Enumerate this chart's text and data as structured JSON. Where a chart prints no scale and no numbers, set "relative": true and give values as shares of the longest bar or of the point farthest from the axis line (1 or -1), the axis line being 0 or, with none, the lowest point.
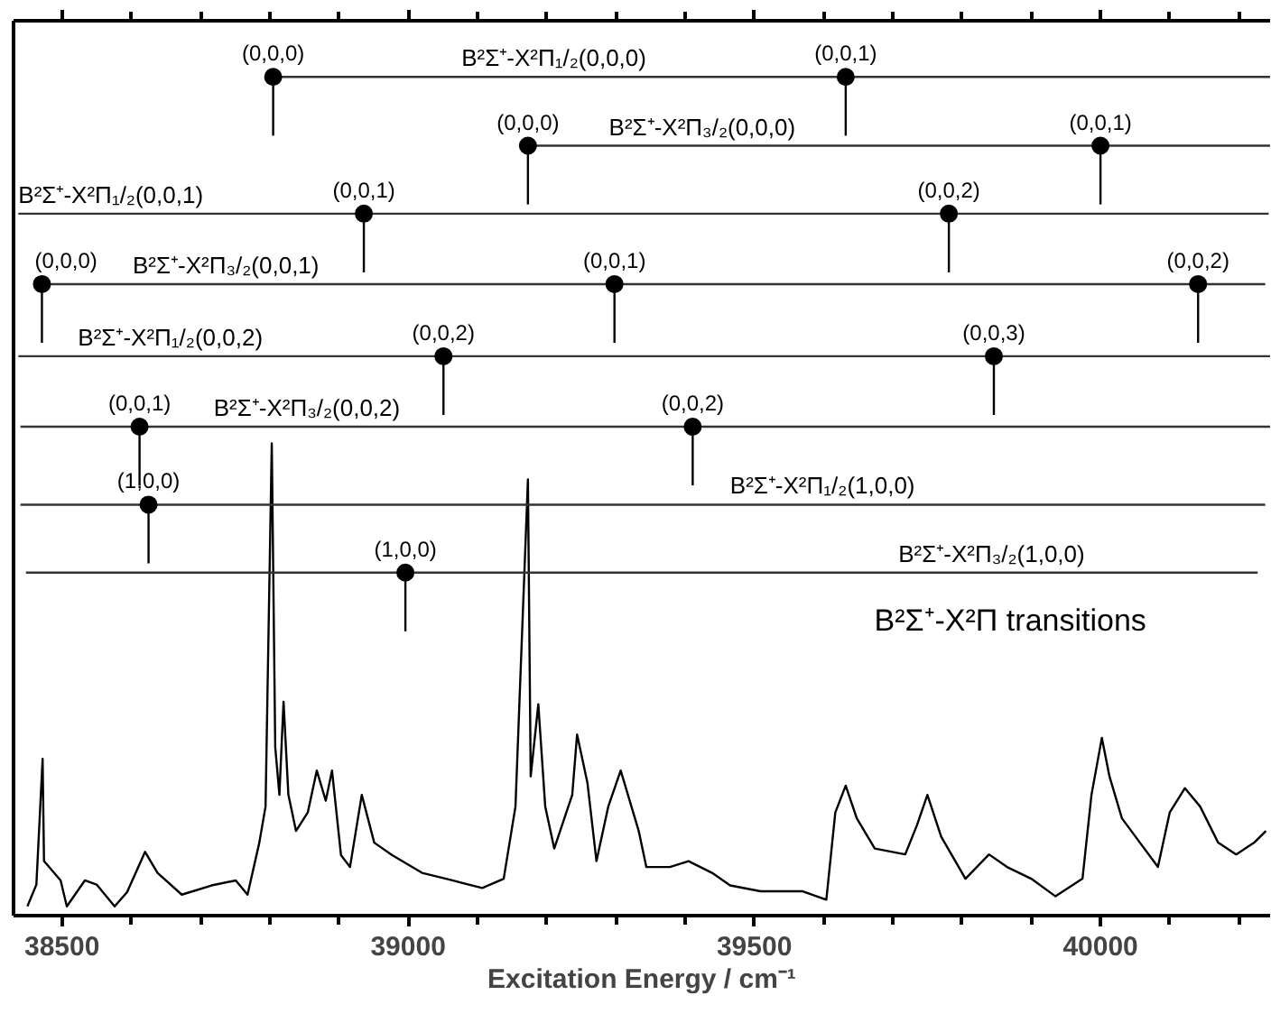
{
  "chart_data": {
    "type": "line",
    "relative": true,
    "xlabel": "Excitation Energy / cm⁻¹",
    "xlim": [
      38430,
      40245
    ],
    "xticks": [
      38500,
      {
        "value": 38600,
        "label": null
      },
      {
        "value": 38700,
        "label": null
      },
      {
        "value": 38800,
        "label": null
      },
      {
        "value": 38900,
        "label": null
      },
      39000,
      {
        "value": 39100,
        "label": null
      },
      {
        "value": 39200,
        "label": null
      },
      {
        "value": 39300,
        "label": null
      },
      {
        "value": 39400,
        "label": null
      },
      39500,
      {
        "value": 39600,
        "label": null
      },
      {
        "value": 39700,
        "label": null
      },
      {
        "value": 39800,
        "label": null
      },
      {
        "value": 39900,
        "label": null
      },
      40000,
      {
        "value": 40100,
        "label": null
      },
      {
        "value": 40200,
        "label": null
      }
    ],
    "annotations": [
      {
        "text": "B²Σ⁺-X²Π₁/₂(0,0,0)",
        "x": 39077,
        "y": 1.0
      },
      {
        "text": "B²Σ⁺-X²Π₃/₂(0,0,0)",
        "x": 39290,
        "y": 0.918
      },
      {
        "text": "B²Σ⁺-X²Π₁/₂(0,0,1)",
        "x": 38437,
        "y": 0.837
      },
      {
        "text": "B²Σ⁺-X²Π₃/₂(0,0,1)",
        "x": 38602,
        "y": 0.753
      },
      {
        "text": "B²Σ⁺-X²Π₁/₂(0,0,2)",
        "x": 38523,
        "y": 0.667
      },
      {
        "text": "B²Σ⁺-X²Π₃/₂(0,0,2)",
        "x": 38719,
        "y": 0.583
      },
      {
        "text": "B²Σ⁺-X²Π₁/₂(1,0,0)",
        "x": 39465,
        "y": 0.49
      },
      {
        "text": "B²Σ⁺-X²Π₃/₂(1,0,0)",
        "x": 39708,
        "y": 0.409
      },
      {
        "text": "(0,0,0)",
        "x": 38805,
        "y": 1.0
      },
      {
        "text": "(0,0,1)",
        "x": 39632,
        "y": 1.0
      },
      {
        "text": "(0,0,0)",
        "x": 39173,
        "y": 0.918
      },
      {
        "text": "(0,0,1)",
        "x": 40000,
        "y": 0.918
      },
      {
        "text": "(0,0,1)",
        "x": 38936,
        "y": 0.837
      },
      {
        "text": "(0,0,2)",
        "x": 39781,
        "y": 0.837
      },
      {
        "text": "(0,0,0)",
        "x": 38471,
        "y": 0.753
      },
      {
        "text": "(0,0,1)",
        "x": 39298,
        "y": 0.753
      },
      {
        "text": "(0,0,2)",
        "x": 40141,
        "y": 0.753
      },
      {
        "text": "(0,0,2)",
        "x": 39051,
        "y": 0.667
      },
      {
        "text": "(0,0,3)",
        "x": 39846,
        "y": 0.667
      },
      {
        "text": "(0,0,1)",
        "x": 38612,
        "y": 0.583
      },
      {
        "text": "(0,0,2)",
        "x": 39411,
        "y": 0.583
      },
      {
        "text": "(1,0,0)",
        "x": 38625,
        "y": 0.49
      },
      {
        "text": "(1,0,0)",
        "x": 38996,
        "y": 0.409
      },
      "B²Σ⁺-X²Π transitions"
    ],
    "series": [
      {
        "color": "#000000",
        "x": [
          38450,
          38463,
          38472,
          38474,
          38498,
          38507,
          38533,
          38550,
          38576,
          38594,
          38620,
          38638,
          38673,
          38716,
          38751,
          38768,
          38785,
          38794,
          38803,
          38808,
          38814,
          38820,
          38827,
          38838,
          38855,
          38868,
          38881,
          38890,
          38903,
          38916,
          38933,
          38951,
          38977,
          39020,
          39064,
          39107,
          39138,
          39155,
          39173,
          39177,
          39188,
          39198,
          39211,
          39237,
          39244,
          39259,
          39272,
          39289,
          39307,
          39333,
          39344,
          39378,
          39405,
          39439,
          39465,
          39509,
          39570,
          39604,
          39617,
          39632,
          39648,
          39674,
          39718,
          39735,
          39750,
          39770,
          39805,
          39839,
          39865,
          39900,
          39935,
          39974,
          39987,
          40002,
          40013,
          40031,
          40057,
          40083,
          40100,
          40122,
          40144,
          40170,
          40196,
          40222,
          40239
        ],
        "values": [
          0.011,
          0.037,
          0.187,
          0.065,
          0.042,
          0.011,
          0.042,
          0.037,
          0.011,
          0.028,
          0.076,
          0.051,
          0.025,
          0.036,
          0.042,
          0.025,
          0.087,
          0.13,
          0.563,
          0.201,
          0.144,
          0.255,
          0.144,
          0.101,
          0.123,
          0.173,
          0.137,
          0.173,
          0.072,
          0.058,
          0.144,
          0.087,
          0.072,
          0.051,
          0.042,
          0.033,
          0.044,
          0.13,
          0.52,
          0.166,
          0.252,
          0.13,
          0.08,
          0.144,
          0.216,
          0.158,
          0.065,
          0.13,
          0.173,
          0.101,
          0.058,
          0.058,
          0.065,
          0.051,
          0.036,
          0.029,
          0.029,
          0.019,
          0.123,
          0.155,
          0.116,
          0.08,
          0.073,
          0.108,
          0.144,
          0.094,
          0.044,
          0.073,
          0.058,
          0.044,
          0.023,
          0.044,
          0.144,
          0.212,
          0.166,
          0.116,
          0.087,
          0.058,
          0.123,
          0.152,
          0.13,
          0.087,
          0.073,
          0.087,
          0.101
        ]
      },
      {
        "type": "line",
        "color": "#333333",
        "x": [
          38805,
          40245
        ],
        "values": [
          1.0,
          1.0
        ]
      },
      {
        "type": "line",
        "color": "#000000",
        "x": [
          38805,
          38805
        ],
        "values": [
          0.93,
          1.0
        ]
      },
      {
        "type": "line",
        "color": "#000000",
        "x": [
          39632,
          39632
        ],
        "values": [
          0.93,
          1.0
        ]
      },
      {
        "type": "scatter",
        "color": "#000000",
        "x": [
          38805,
          39632
        ],
        "values": [
          1.0,
          1.0
        ]
      },
      {
        "type": "line",
        "color": "#333333",
        "x": [
          39173,
          40245
        ],
        "values": [
          0.918,
          0.918
        ]
      },
      {
        "type": "line",
        "color": "#000000",
        "x": [
          39173,
          39173
        ],
        "values": [
          0.848,
          0.918
        ]
      },
      {
        "type": "line",
        "color": "#000000",
        "x": [
          40000,
          40000
        ],
        "values": [
          0.848,
          0.918
        ]
      },
      {
        "type": "scatter",
        "color": "#000000",
        "x": [
          39173,
          40000
        ],
        "values": [
          0.918,
          0.918
        ]
      },
      {
        "type": "line",
        "color": "#333333",
        "x": [
          38437,
          40243
        ],
        "values": [
          0.837,
          0.837
        ]
      },
      {
        "type": "line",
        "color": "#000000",
        "x": [
          38936,
          38936
        ],
        "values": [
          0.767,
          0.837
        ]
      },
      {
        "type": "line",
        "color": "#000000",
        "x": [
          39781,
          39781
        ],
        "values": [
          0.767,
          0.837
        ]
      },
      {
        "type": "scatter",
        "color": "#000000",
        "x": [
          38936,
          39781
        ],
        "values": [
          0.837,
          0.837
        ]
      },
      {
        "type": "line",
        "color": "#333333",
        "x": [
          38463,
          40238
        ],
        "values": [
          0.753,
          0.753
        ]
      },
      {
        "type": "line",
        "color": "#000000",
        "x": [
          38471,
          38471
        ],
        "values": [
          0.683,
          0.753
        ]
      },
      {
        "type": "line",
        "color": "#000000",
        "x": [
          39298,
          39298
        ],
        "values": [
          0.683,
          0.753
        ]
      },
      {
        "type": "line",
        "color": "#000000",
        "x": [
          40141,
          40141
        ],
        "values": [
          0.683,
          0.753
        ]
      },
      {
        "type": "scatter",
        "color": "#000000",
        "x": [
          38471,
          39298,
          40141
        ],
        "values": [
          0.753,
          0.753,
          0.753
        ]
      },
      {
        "type": "line",
        "color": "#333333",
        "x": [
          38437,
          40245
        ],
        "values": [
          0.667,
          0.667
        ]
      },
      {
        "type": "line",
        "color": "#000000",
        "x": [
          39051,
          39051
        ],
        "values": [
          0.597,
          0.667
        ]
      },
      {
        "type": "line",
        "color": "#000000",
        "x": [
          39846,
          39846
        ],
        "values": [
          0.597,
          0.667
        ]
      },
      {
        "type": "scatter",
        "color": "#000000",
        "x": [
          39051,
          39846
        ],
        "values": [
          0.667,
          0.667
        ]
      },
      {
        "type": "line",
        "color": "#333333",
        "x": [
          38440,
          40245
        ],
        "values": [
          0.583,
          0.583
        ]
      },
      {
        "type": "line",
        "color": "#000000",
        "x": [
          38612,
          38612
        ],
        "values": [
          0.513,
          0.583
        ]
      },
      {
        "type": "line",
        "color": "#000000",
        "x": [
          39411,
          39411
        ],
        "values": [
          0.513,
          0.583
        ]
      },
      {
        "type": "scatter",
        "color": "#000000",
        "x": [
          38612,
          39411
        ],
        "values": [
          0.583,
          0.583
        ]
      },
      {
        "type": "line",
        "color": "#333333",
        "x": [
          38440,
          40238
        ],
        "values": [
          0.49,
          0.49
        ]
      },
      {
        "type": "line",
        "color": "#000000",
        "x": [
          38625,
          38625
        ],
        "values": [
          0.42,
          0.49
        ]
      },
      {
        "type": "scatter",
        "color": "#000000",
        "x": [
          38625
        ],
        "values": [
          0.49
        ]
      },
      {
        "type": "line",
        "color": "#333333",
        "x": [
          38448,
          40227
        ],
        "values": [
          0.409,
          0.409
        ]
      },
      {
        "type": "line",
        "color": "#000000",
        "x": [
          38996,
          38996
        ],
        "values": [
          0.339,
          0.409
        ]
      },
      {
        "type": "scatter",
        "color": "#000000",
        "x": [
          38996
        ],
        "values": [
          0.409
        ]
      }
    ]
  }
}
